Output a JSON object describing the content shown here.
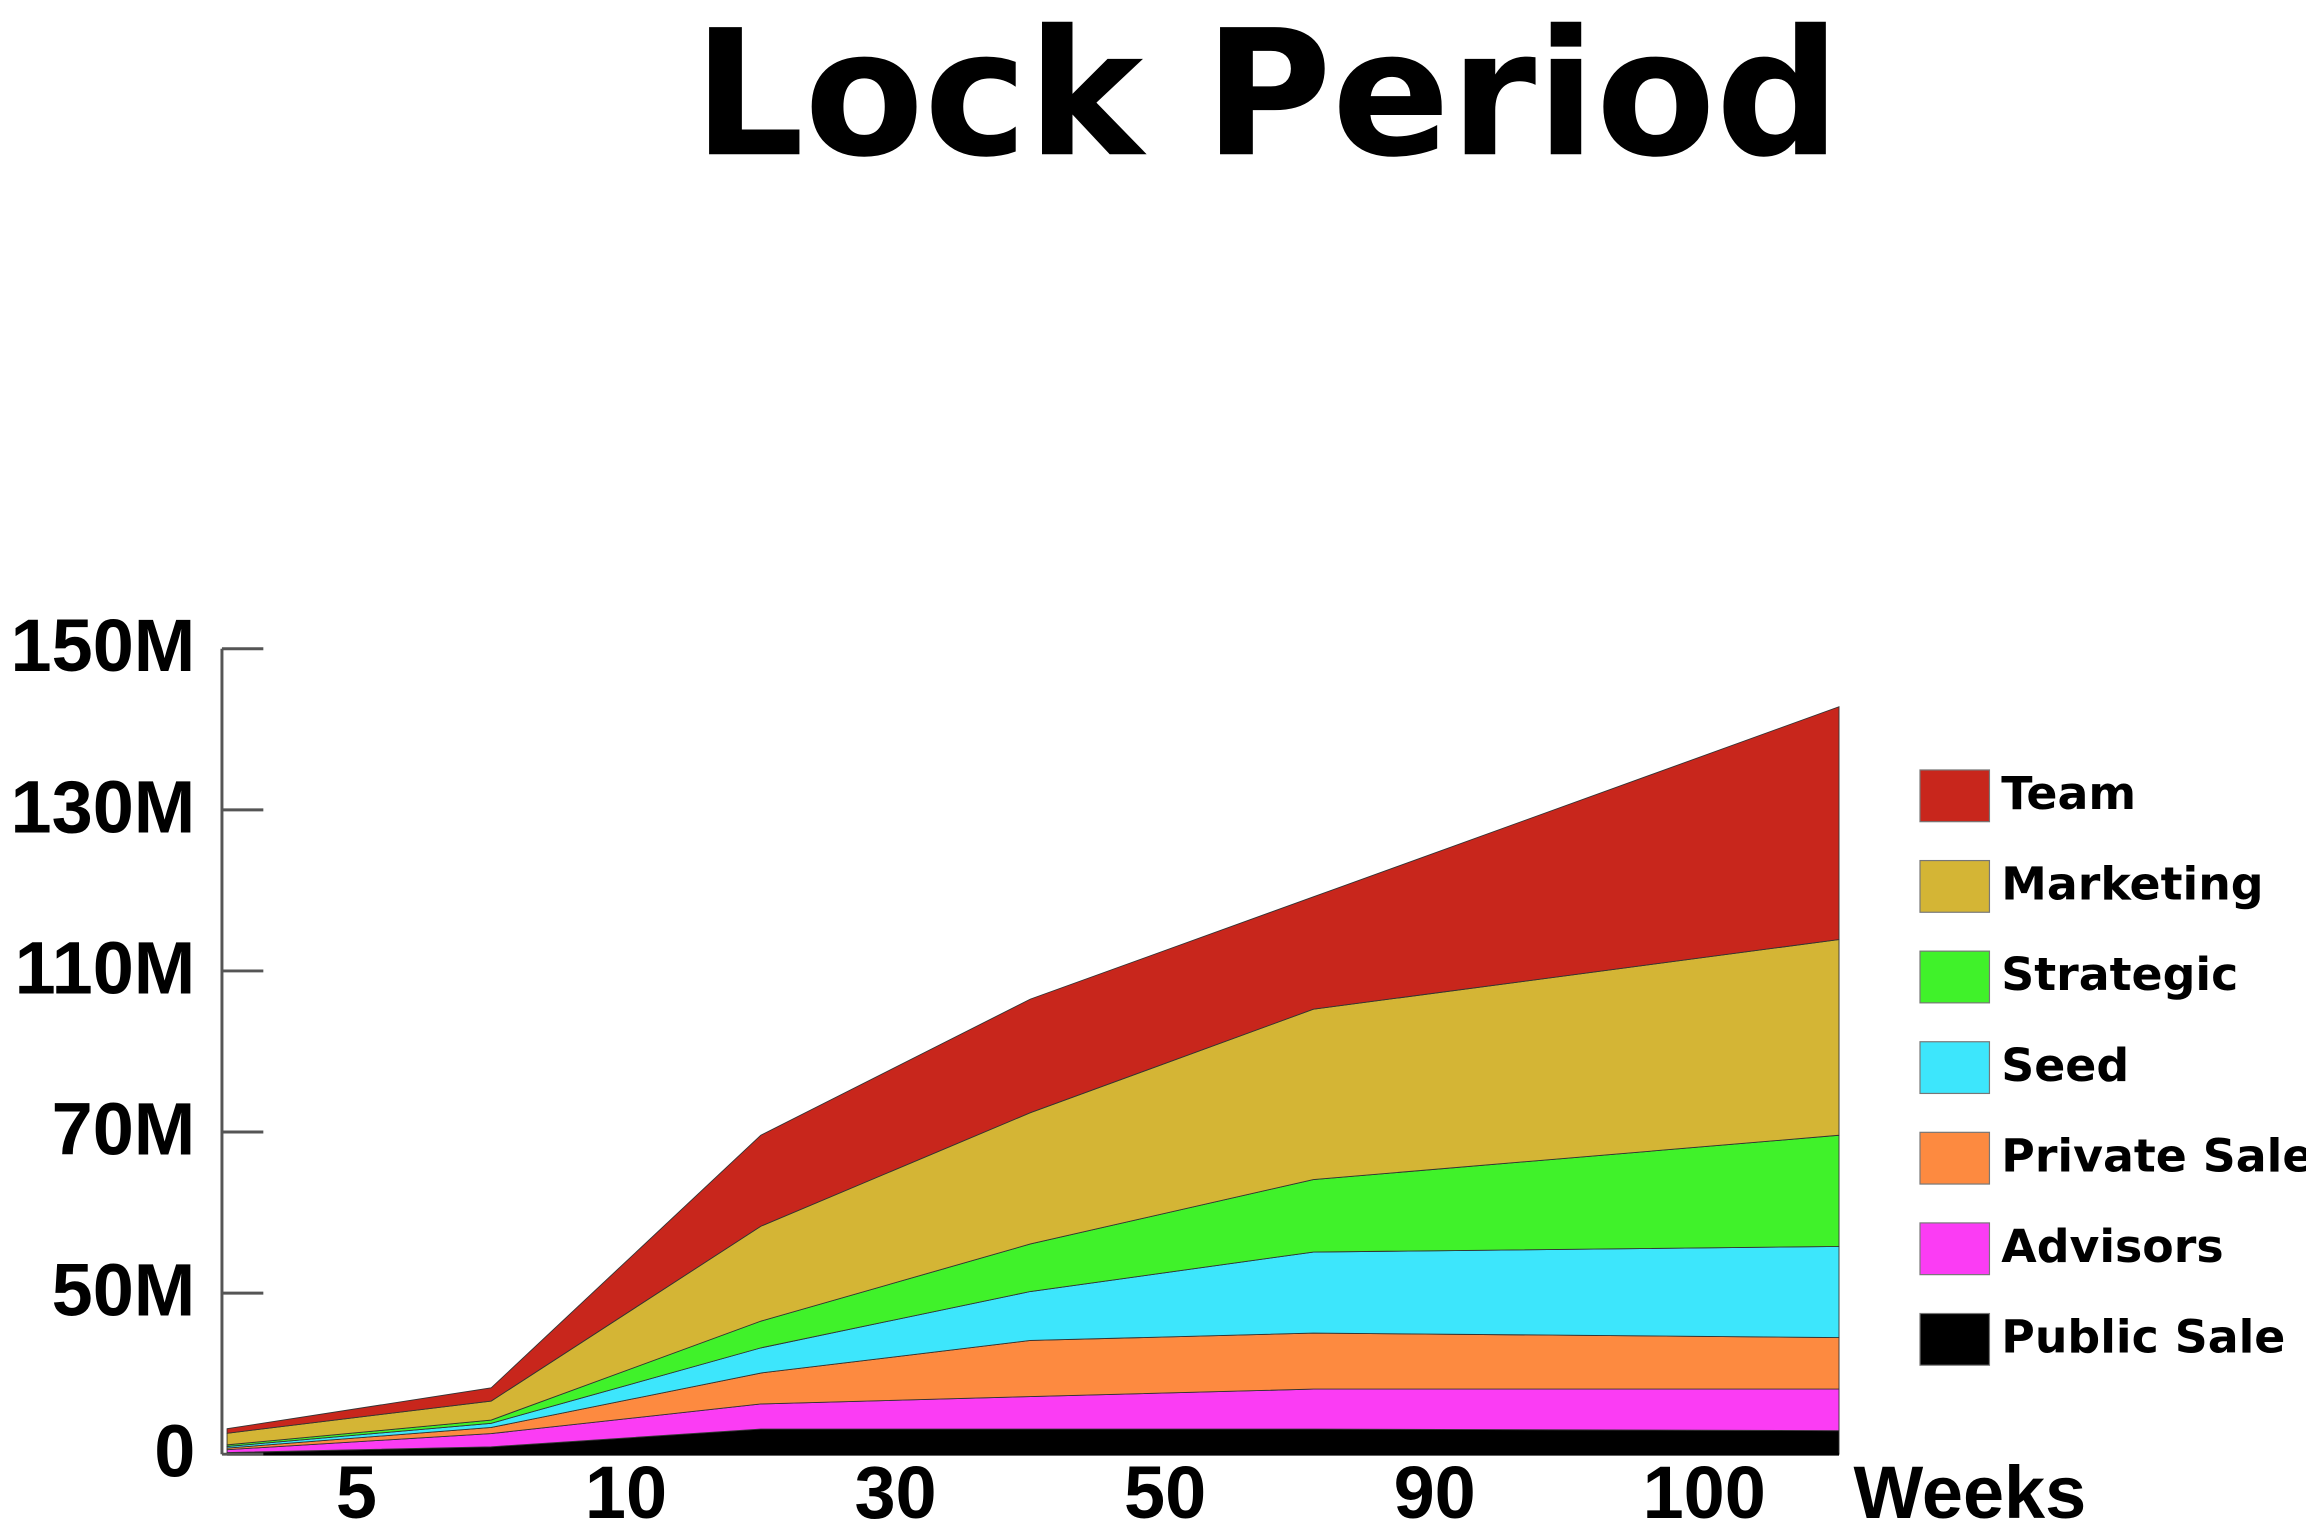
{
  "chart_data": {
    "type": "area",
    "stacked": true,
    "title": "Lock Period",
    "x_label": "Weeks",
    "x": [
      2.6,
      7.5,
      20,
      40,
      72,
      105
    ],
    "xlim": [
      2.6,
      105
    ],
    "xticks": [
      5,
      10,
      30,
      50,
      90,
      100
    ],
    "ylim": [
      0,
      150
    ],
    "yticks": [
      0,
      {
        "value": 50,
        "label": "50M"
      },
      {
        "value": 70,
        "label": "70M"
      },
      {
        "value": 110,
        "label": "110M"
      },
      {
        "value": 130,
        "label": "130M"
      },
      {
        "value": 150,
        "label": "150M"
      }
    ],
    "series": [
      {
        "name": "Public Sale",
        "color": "#000000",
        "values": [
          0.5,
          2.3,
          7.8,
          7.8,
          7.8,
          7.3
        ]
      },
      {
        "name": "Advisors",
        "color": "#fb3cf4",
        "values": [
          0.9,
          4.1,
          7.8,
          10.1,
          12.4,
          12.9
        ]
      },
      {
        "name": "Private Sale",
        "color": "#fd8a40",
        "values": [
          0.5,
          1.9,
          9.6,
          17.4,
          17.4,
          16.0
        ]
      },
      {
        "name": "Seed",
        "color": "#3de6fc",
        "values": [
          0.5,
          1.3,
          7.8,
          14.9,
          17.5,
          19.6
        ]
      },
      {
        "name": "Strategic",
        "color": "#40f22a",
        "values": [
          0.5,
          1.0,
          8.3,
          5.9,
          9.0,
          13.8
        ]
      },
      {
        "name": "Marketing",
        "color": "#d4b535",
        "values": [
          3.6,
          5.9,
          17.0,
          18.7,
          36.4,
          44.3
        ]
      },
      {
        "name": "Team",
        "color": "#c8261c",
        "values": [
          1.4,
          4.1,
          11.3,
          28.2,
          18.7,
          28.9
        ]
      }
    ],
    "legend": "right"
  }
}
